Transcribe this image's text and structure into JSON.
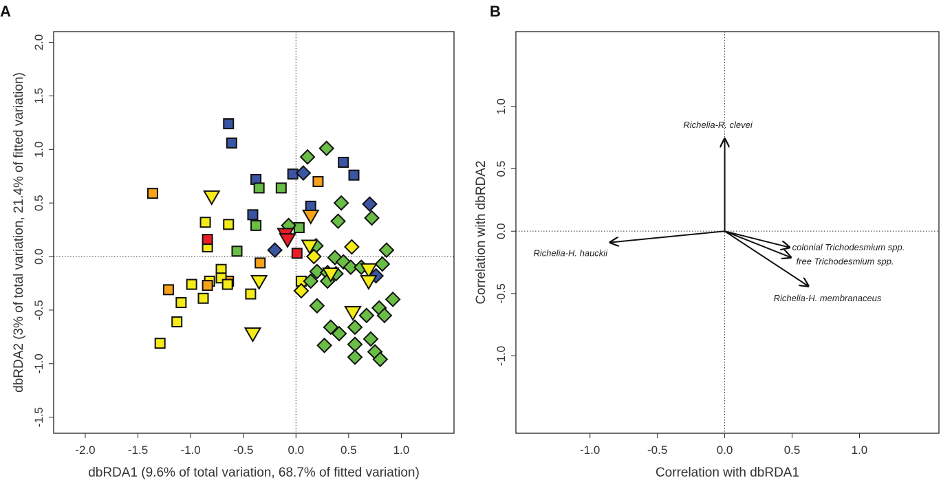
{
  "chart_data": [
    {
      "type": "scatter",
      "panel": "A",
      "xlabel": "dbRDA1 (9.6% of total variation, 68.7% of fitted variation)",
      "ylabel": "dbRDA2 (3% of total variation, 21.4% of fitted variation)",
      "xlim": [
        -2.3,
        1.5
      ],
      "ylim": [
        -1.65,
        2.1
      ],
      "xticks": [
        "-2.0",
        "-1.5",
        "-1.0",
        "-0.5",
        "0.0",
        "0.5",
        "1.0"
      ],
      "yticks": [
        "-1.5",
        "-1.0",
        "-0.5",
        "0.0",
        "0.5",
        "1.0",
        "1.5",
        "2.0"
      ],
      "colors": {
        "blue": "#3b55a3",
        "green": "#6abd45",
        "orange": "#f6a31b",
        "red": "#ec1c24",
        "yellow": "#f4eb19"
      },
      "points": [
        {
          "shape": "square",
          "color": "yellow",
          "x": -0.86,
          "y": 0.32
        },
        {
          "shape": "square",
          "color": "yellow",
          "x": -0.64,
          "y": 0.3
        },
        {
          "shape": "square",
          "color": "yellow",
          "x": -0.84,
          "y": 0.09
        },
        {
          "shape": "square",
          "color": "yellow",
          "x": -0.71,
          "y": -0.12
        },
        {
          "shape": "square",
          "color": "yellow",
          "x": -0.82,
          "y": -0.23
        },
        {
          "shape": "square",
          "color": "yellow",
          "x": -0.99,
          "y": -0.26
        },
        {
          "shape": "square",
          "color": "yellow",
          "x": -1.09,
          "y": -0.43
        },
        {
          "shape": "square",
          "color": "yellow",
          "x": -0.88,
          "y": -0.39
        },
        {
          "shape": "square",
          "color": "yellow",
          "x": -1.13,
          "y": -0.61
        },
        {
          "shape": "square",
          "color": "yellow",
          "x": -1.29,
          "y": -0.81
        },
        {
          "shape": "square",
          "color": "yellow",
          "x": -0.43,
          "y": -0.35
        },
        {
          "shape": "square",
          "color": "yellow",
          "x": 0.05,
          "y": -0.23
        },
        {
          "shape": "square",
          "color": "orange",
          "x": -1.36,
          "y": 0.59
        },
        {
          "shape": "square",
          "color": "orange",
          "x": -0.34,
          "y": -0.06
        },
        {
          "shape": "square",
          "color": "orange",
          "x": -1.21,
          "y": -0.31
        },
        {
          "shape": "square",
          "color": "orange",
          "x": -0.64,
          "y": -0.23
        },
        {
          "shape": "square",
          "color": "orange",
          "x": -0.84,
          "y": -0.27
        },
        {
          "shape": "square",
          "color": "orange",
          "x": 0.21,
          "y": 0.7
        },
        {
          "shape": "square",
          "color": "yellow",
          "x": -0.71,
          "y": -0.2
        },
        {
          "shape": "square",
          "color": "yellow",
          "x": -0.65,
          "y": -0.26
        },
        {
          "shape": "square",
          "color": "red",
          "x": -0.84,
          "y": 0.16
        },
        {
          "shape": "square",
          "color": "red",
          "x": 0.01,
          "y": 0.03
        },
        {
          "shape": "square",
          "color": "blue",
          "x": -0.64,
          "y": 1.24
        },
        {
          "shape": "square",
          "color": "blue",
          "x": -0.61,
          "y": 1.06
        },
        {
          "shape": "square",
          "color": "blue",
          "x": -0.38,
          "y": 0.72
        },
        {
          "shape": "square",
          "color": "blue",
          "x": -0.41,
          "y": 0.39
        },
        {
          "shape": "square",
          "color": "blue",
          "x": -0.03,
          "y": 0.77
        },
        {
          "shape": "square",
          "color": "blue",
          "x": 0.45,
          "y": 0.88
        },
        {
          "shape": "square",
          "color": "blue",
          "x": 0.55,
          "y": 0.76
        },
        {
          "shape": "square",
          "color": "blue",
          "x": 0.14,
          "y": 0.47
        },
        {
          "shape": "square",
          "color": "green",
          "x": -0.35,
          "y": 0.64
        },
        {
          "shape": "square",
          "color": "green",
          "x": -0.14,
          "y": 0.64
        },
        {
          "shape": "square",
          "color": "green",
          "x": -0.38,
          "y": 0.29
        },
        {
          "shape": "square",
          "color": "green",
          "x": -0.56,
          "y": 0.05
        },
        {
          "shape": "square",
          "color": "green",
          "x": 0.03,
          "y": 0.27
        },
        {
          "shape": "diamond",
          "color": "green",
          "x": 0.29,
          "y": 1.01
        },
        {
          "shape": "diamond",
          "color": "green",
          "x": 0.11,
          "y": 0.93
        },
        {
          "shape": "diamond",
          "color": "green",
          "x": 0.43,
          "y": 0.5
        },
        {
          "shape": "diamond",
          "color": "green",
          "x": 0.4,
          "y": 0.33
        },
        {
          "shape": "diamond",
          "color": "green",
          "x": 0.72,
          "y": 0.36
        },
        {
          "shape": "diamond",
          "color": "green",
          "x": -0.07,
          "y": 0.29
        },
        {
          "shape": "diamond",
          "color": "green",
          "x": 0.19,
          "y": 0.1
        },
        {
          "shape": "diamond",
          "color": "green",
          "x": 0.86,
          "y": 0.06
        },
        {
          "shape": "diamond",
          "color": "green",
          "x": 0.37,
          "y": -0.01
        },
        {
          "shape": "diamond",
          "color": "green",
          "x": 0.45,
          "y": -0.05
        },
        {
          "shape": "diamond",
          "color": "green",
          "x": 0.52,
          "y": -0.1
        },
        {
          "shape": "diamond",
          "color": "green",
          "x": 0.62,
          "y": -0.1
        },
        {
          "shape": "diamond",
          "color": "green",
          "x": 0.82,
          "y": -0.07
        },
        {
          "shape": "diamond",
          "color": "green",
          "x": 0.2,
          "y": -0.14
        },
        {
          "shape": "diamond",
          "color": "green",
          "x": 0.3,
          "y": -0.15
        },
        {
          "shape": "diamond",
          "color": "green",
          "x": 0.38,
          "y": -0.16
        },
        {
          "shape": "diamond",
          "color": "green",
          "x": 0.3,
          "y": -0.23
        },
        {
          "shape": "diamond",
          "color": "green",
          "x": 0.14,
          "y": -0.23
        },
        {
          "shape": "diamond",
          "color": "green",
          "x": 0.2,
          "y": -0.46
        },
        {
          "shape": "diamond",
          "color": "green",
          "x": 0.92,
          "y": -0.4
        },
        {
          "shape": "diamond",
          "color": "green",
          "x": 0.67,
          "y": -0.55
        },
        {
          "shape": "diamond",
          "color": "green",
          "x": 0.79,
          "y": -0.48
        },
        {
          "shape": "diamond",
          "color": "green",
          "x": 0.84,
          "y": -0.55
        },
        {
          "shape": "diamond",
          "color": "green",
          "x": 0.33,
          "y": -0.66
        },
        {
          "shape": "diamond",
          "color": "green",
          "x": 0.41,
          "y": -0.72
        },
        {
          "shape": "diamond",
          "color": "green",
          "x": 0.56,
          "y": -0.66
        },
        {
          "shape": "diamond",
          "color": "green",
          "x": 0.27,
          "y": -0.83
        },
        {
          "shape": "diamond",
          "color": "green",
          "x": 0.56,
          "y": -0.82
        },
        {
          "shape": "diamond",
          "color": "green",
          "x": 0.71,
          "y": -0.77
        },
        {
          "shape": "diamond",
          "color": "green",
          "x": 0.56,
          "y": -0.94
        },
        {
          "shape": "diamond",
          "color": "green",
          "x": 0.75,
          "y": -0.89
        },
        {
          "shape": "diamond",
          "color": "green",
          "x": 0.8,
          "y": -0.96
        },
        {
          "shape": "diamond",
          "color": "blue",
          "x": 0.07,
          "y": 0.78
        },
        {
          "shape": "diamond",
          "color": "blue",
          "x": 0.7,
          "y": 0.49
        },
        {
          "shape": "diamond",
          "color": "blue",
          "x": 0.76,
          "y": -0.18
        },
        {
          "shape": "diamond",
          "color": "blue",
          "x": -0.2,
          "y": 0.06
        },
        {
          "shape": "diamond",
          "color": "yellow",
          "x": 0.53,
          "y": 0.09
        },
        {
          "shape": "diamond",
          "color": "yellow",
          "x": 0.17,
          "y": 0.0
        },
        {
          "shape": "diamond",
          "color": "yellow",
          "x": 0.05,
          "y": -0.32
        },
        {
          "shape": "triangle",
          "color": "orange",
          "x": 0.14,
          "y": 0.38
        },
        {
          "shape": "triangle",
          "color": "red",
          "x": -0.1,
          "y": 0.21
        },
        {
          "shape": "triangle",
          "color": "red",
          "x": -0.08,
          "y": 0.16
        },
        {
          "shape": "triangle",
          "color": "yellow",
          "x": -0.8,
          "y": 0.56
        },
        {
          "shape": "triangle",
          "color": "yellow",
          "x": -0.35,
          "y": -0.23
        },
        {
          "shape": "triangle",
          "color": "yellow",
          "x": -0.41,
          "y": -0.72
        },
        {
          "shape": "triangle",
          "color": "yellow",
          "x": 0.13,
          "y": 0.1
        },
        {
          "shape": "triangle",
          "color": "yellow",
          "x": 0.33,
          "y": -0.16
        },
        {
          "shape": "triangle",
          "color": "yellow",
          "x": 0.69,
          "y": -0.12
        },
        {
          "shape": "triangle",
          "color": "yellow",
          "x": 0.69,
          "y": -0.23
        },
        {
          "shape": "triangle",
          "color": "yellow",
          "x": 0.54,
          "y": -0.52
        }
      ]
    },
    {
      "type": "biplot",
      "panel": "B",
      "xlabel": "Correlation with dbRDA1",
      "ylabel": "Correlation with dbRDA2",
      "xlim": [
        -1.55,
        1.59
      ],
      "ylim": [
        -1.62,
        1.6
      ],
      "xticks": [
        "-1.0",
        "-0.5",
        "0.0",
        "0.5",
        "1.0"
      ],
      "yticks": [
        "-1.0",
        "-0.5",
        "0.0",
        "0.5",
        "1.0"
      ],
      "vectors": [
        {
          "label": "Richelia-R. clevei",
          "x": 0.0,
          "y": 0.74
        },
        {
          "label": "Richelia-H. hauckii",
          "x": -0.85,
          "y": -0.09
        },
        {
          "label": "colonial Trichodesmium spp.",
          "x": 0.48,
          "y": -0.13
        },
        {
          "label": "free Trichodesmium spp.",
          "x": 0.49,
          "y": -0.21
        },
        {
          "label": "Richelia-H. membranaceus",
          "x": 0.62,
          "y": -0.44
        }
      ]
    }
  ]
}
